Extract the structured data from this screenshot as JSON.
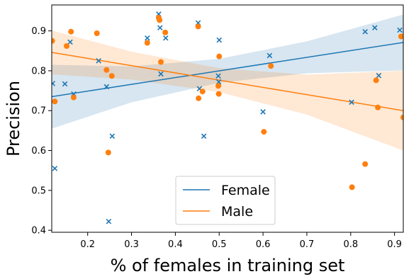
{
  "chart_data": {
    "type": "scatter",
    "xlabel": "% of females in training set",
    "ylabel": "Precision",
    "xlim": [
      0.118,
      0.92
    ],
    "ylim": [
      0.395,
      0.965
    ],
    "x_ticks": [
      "0.2",
      "0.3",
      "0.4",
      "0.5",
      "0.6",
      "0.7",
      "0.8",
      "0.9"
    ],
    "y_ticks": [
      "0.4",
      "0.5",
      "0.6",
      "0.7",
      "0.8",
      "0.9"
    ],
    "x_tick_values": [
      0.2,
      0.3,
      0.4,
      0.5,
      0.6,
      0.7,
      0.8,
      0.9
    ],
    "y_tick_values": [
      0.4,
      0.5,
      0.6,
      0.7,
      0.8,
      0.9
    ],
    "grid": false,
    "legend_position": "bottom-center",
    "series": [
      {
        "name": "Female",
        "color": "#1f77b4",
        "marker": "x",
        "points": [
          [
            0.12,
            0.768
          ],
          [
            0.125,
            0.555
          ],
          [
            0.148,
            0.767
          ],
          [
            0.16,
            0.872
          ],
          [
            0.168,
            0.742
          ],
          [
            0.225,
            0.825
          ],
          [
            0.243,
            0.76
          ],
          [
            0.248,
            0.422
          ],
          [
            0.256,
            0.636
          ],
          [
            0.336,
            0.882
          ],
          [
            0.362,
            0.942
          ],
          [
            0.365,
            0.908
          ],
          [
            0.367,
            0.792
          ],
          [
            0.378,
            0.882
          ],
          [
            0.452,
            0.92
          ],
          [
            0.455,
            0.755
          ],
          [
            0.465,
            0.636
          ],
          [
            0.498,
            0.787
          ],
          [
            0.499,
            0.772
          ],
          [
            0.5,
            0.877
          ],
          [
            0.6,
            0.697
          ],
          [
            0.615,
            0.838
          ],
          [
            0.802,
            0.721
          ],
          [
            0.833,
            0.898
          ],
          [
            0.855,
            0.908
          ],
          [
            0.864,
            0.788
          ],
          [
            0.912,
            0.902
          ]
        ],
        "fit": {
          "x": [
            0.118,
            0.92
          ],
          "y": [
            0.735,
            0.871
          ]
        }
      },
      {
        "name": "Male",
        "color": "#ff7f0e",
        "marker": "o",
        "points": [
          [
            0.119,
            0.875
          ],
          [
            0.125,
            0.723
          ],
          [
            0.152,
            0.862
          ],
          [
            0.162,
            0.898
          ],
          [
            0.168,
            0.733
          ],
          [
            0.221,
            0.894
          ],
          [
            0.243,
            0.802
          ],
          [
            0.247,
            0.595
          ],
          [
            0.255,
            0.787
          ],
          [
            0.336,
            0.87
          ],
          [
            0.362,
            0.933
          ],
          [
            0.364,
            0.927
          ],
          [
            0.367,
            0.822
          ],
          [
            0.377,
            0.896
          ],
          [
            0.452,
            0.911
          ],
          [
            0.453,
            0.731
          ],
          [
            0.462,
            0.748
          ],
          [
            0.498,
            0.762
          ],
          [
            0.499,
            0.742
          ],
          [
            0.5,
            0.836
          ],
          [
            0.602,
            0.647
          ],
          [
            0.618,
            0.812
          ],
          [
            0.803,
            0.508
          ],
          [
            0.833,
            0.566
          ],
          [
            0.858,
            0.776
          ],
          [
            0.862,
            0.708
          ],
          [
            0.915,
            0.886
          ],
          [
            0.92,
            0.683
          ]
        ],
        "fit": {
          "x": [
            0.118,
            0.92
          ],
          "y": [
            0.846,
            0.7
          ]
        }
      }
    ]
  }
}
